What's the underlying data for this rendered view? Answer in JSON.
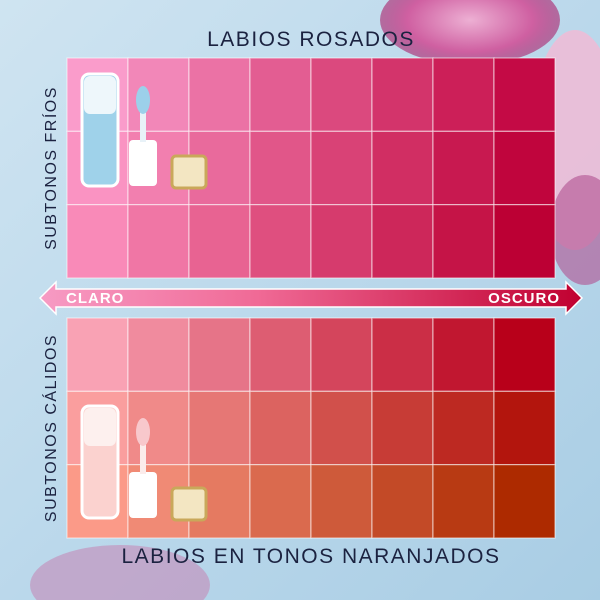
{
  "header": {
    "top_label": "LABIOS ROSADOS",
    "bottom_label": "LABIOS EN TONOS NARANJADOS"
  },
  "axes": {
    "cool": "SUBTONOS FRÍOS",
    "warm": "SUBTONOS CÁLIDOS",
    "light": "CLARO",
    "dark": "OSCURO"
  }
}
